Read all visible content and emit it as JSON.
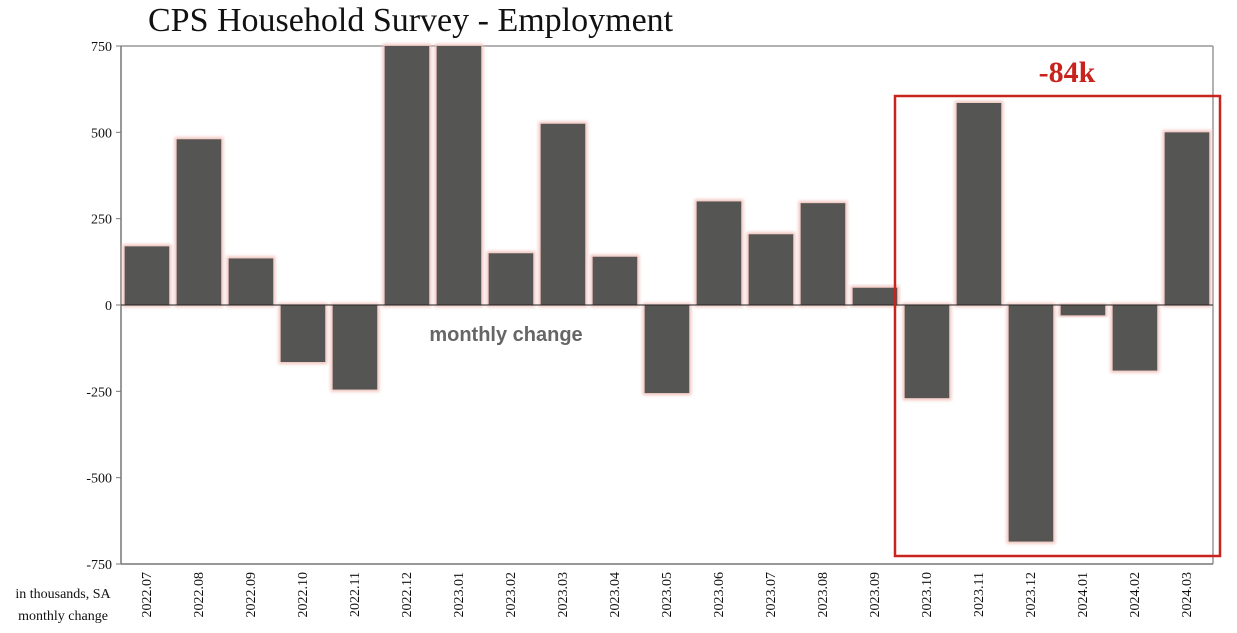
{
  "chart_data": {
    "type": "bar",
    "title": "CPS Household Survey - Employment",
    "categories": [
      "2022.07",
      "2022.08",
      "2022.09",
      "2022.10",
      "2022.11",
      "2022.12",
      "2023.01",
      "2023.02",
      "2023.03",
      "2023.04",
      "2023.05",
      "2023.06",
      "2023.07",
      "2023.08",
      "2023.09",
      "2023.10",
      "2023.11",
      "2023.12",
      "2024.01",
      "2024.02",
      "2024.03"
    ],
    "series": [
      {
        "values": [
          170,
          480,
          135,
          -165,
          -245,
          750,
          750,
          150,
          525,
          140,
          -255,
          300,
          205,
          295,
          50,
          -270,
          585,
          -685,
          -30,
          -190,
          500
        ]
      }
    ],
    "yticks": [
      750,
      500,
      250,
      0,
      -250,
      -500,
      -750
    ],
    "ylim": [
      -750,
      750
    ],
    "xlabel": "",
    "ylabel": "",
    "annotations": {
      "center_text": "monthly change",
      "highlight_label": "-84k",
      "highlight_range": [
        "2023.10",
        "2024.03"
      ]
    },
    "footnote": [
      "in thousands, SA",
      "monthly change"
    ],
    "colors": {
      "bar": "#555553",
      "bar_glow": "#f0c2bd",
      "highlight": "#c8231c",
      "axis": "#777777"
    },
    "grid": false,
    "legend": "none"
  }
}
